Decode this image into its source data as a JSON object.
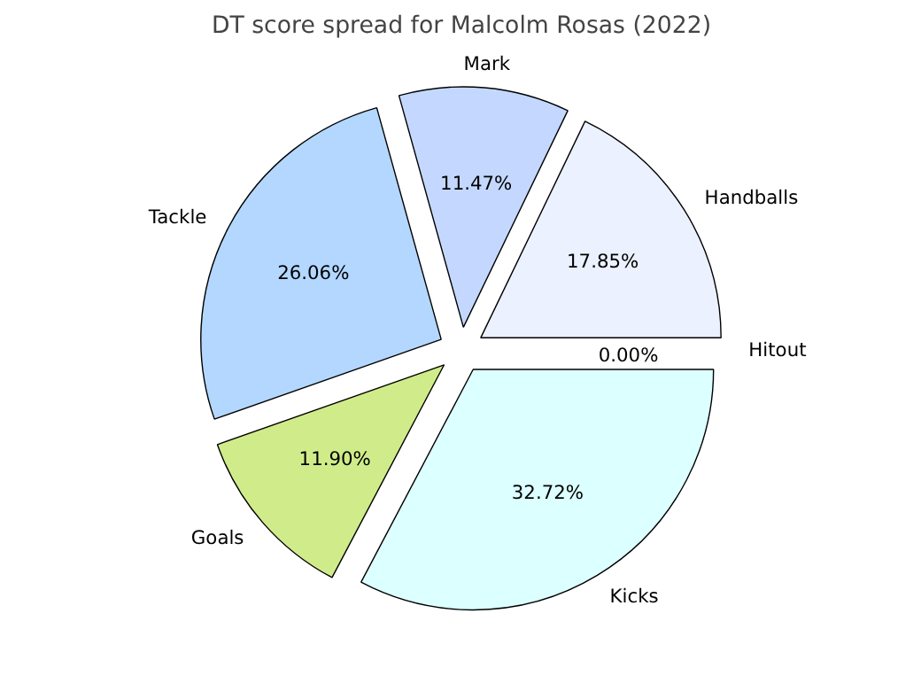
{
  "chart_data": {
    "type": "pie",
    "title": "DT score spread for Malcolm Rosas (2022)",
    "categories": [
      "Handballs",
      "Mark",
      "Tackle",
      "Goals",
      "Kicks",
      "Hitout"
    ],
    "values": [
      17.85,
      11.47,
      26.06,
      11.9,
      32.72,
      0.0
    ],
    "colors": [
      "#ebf1ff",
      "#c4d8ff",
      "#b3d7ff",
      "#d0ec8a",
      "#dcffff",
      "#f0f0f0"
    ],
    "value_labels": [
      "17.85%",
      "11.47%",
      "26.06%",
      "11.90%",
      "32.72%",
      "0.00%"
    ]
  }
}
